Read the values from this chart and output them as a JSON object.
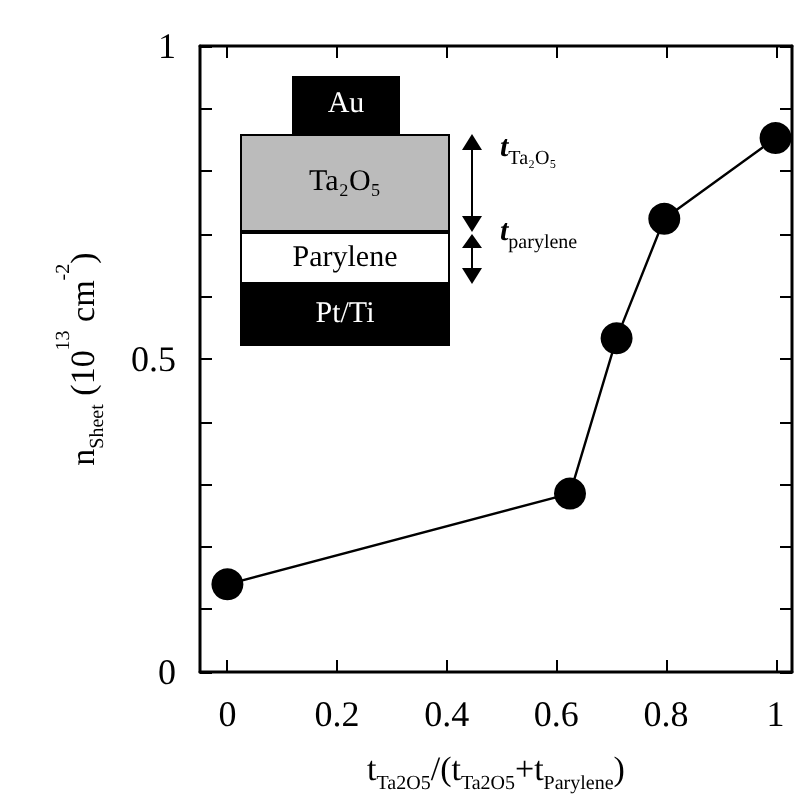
{
  "chart_data": {
    "type": "line",
    "xlabel": "t$_{Ta2O5}$/(t$_{Ta2O5}$+t$_{Parylene}$)",
    "ylabel": "n$_{Sheet}$ (10$^{13}$ cm$^{-2}$)",
    "x": [
      0,
      0.625,
      0.71,
      0.797,
      1
    ],
    "series": [
      {
        "color": "#000000",
        "values": [
          0.14,
          0.285,
          0.533,
          0.724,
          0.853
        ]
      }
    ],
    "xlim": [
      -0.05,
      1.03
    ],
    "xticks": [
      0,
      0.2,
      0.4,
      0.6,
      0.8,
      1
    ],
    "ylim": [
      0,
      1
    ],
    "yticks": [
      0,
      {
        "value": 0.1,
        "label": null
      },
      {
        "value": 0.2,
        "label": null
      },
      {
        "value": 0.3,
        "label": null
      },
      {
        "value": 0.4,
        "label": null
      },
      0.5,
      {
        "value": 0.6,
        "label": null
      },
      {
        "value": 0.7,
        "label": null
      },
      {
        "value": 0.8,
        "label": null
      },
      {
        "value": 0.9,
        "label": null
      },
      1
    ],
    "marker": "circle",
    "line_style": "solid",
    "grid": false,
    "annotations": [
      "Au",
      "Ta₂O₅",
      "Parylene",
      "Pt/Ti",
      "t$_{Ta₂O₅}$",
      "t$_{parylene}$"
    ]
  }
}
